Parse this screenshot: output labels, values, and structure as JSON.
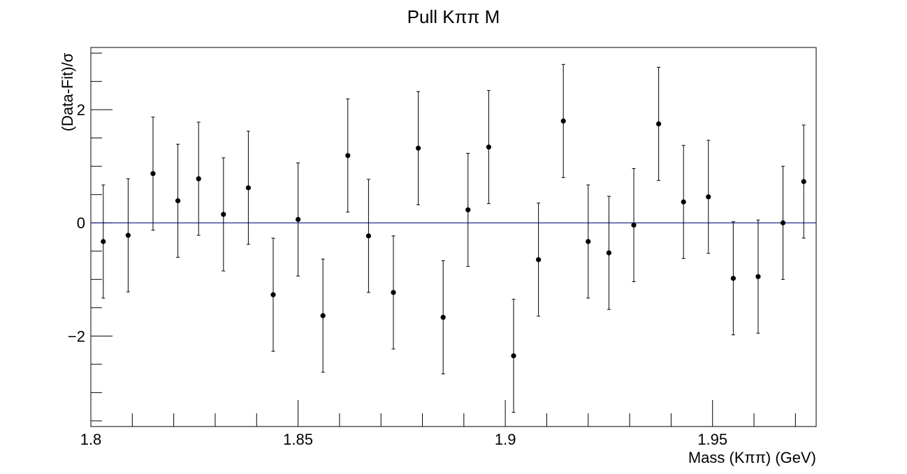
{
  "chart_data": {
    "type": "scatter",
    "title": "Pull Kππ M",
    "xlabel": "Mass (Kππ) (GeV)",
    "ylabel": "(Data-Fit)/σ",
    "xlim": [
      1.8,
      1.975
    ],
    "ylim": [
      -3.6,
      3.1
    ],
    "x_ticks": [
      1.8,
      1.85,
      1.9,
      1.95
    ],
    "x_tick_labels": [
      "1.8",
      "1.85",
      "1.9",
      "1.95"
    ],
    "y_ticks": [
      -2,
      0,
      2
    ],
    "y_tick_labels": [
      "−2",
      "0",
      "2"
    ],
    "reference_line": 0,
    "grid": false,
    "series": [
      {
        "error_bar": 1.0,
        "points": [
          {
            "x": 1.803,
            "y": -0.33
          },
          {
            "x": 1.809,
            "y": -0.22
          },
          {
            "x": 1.815,
            "y": 0.87
          },
          {
            "x": 1.821,
            "y": 0.39
          },
          {
            "x": 1.826,
            "y": 0.78
          },
          {
            "x": 1.832,
            "y": 0.15
          },
          {
            "x": 1.838,
            "y": 0.62
          },
          {
            "x": 1.844,
            "y": -1.27
          },
          {
            "x": 1.85,
            "y": 0.06
          },
          {
            "x": 1.856,
            "y": -1.64
          },
          {
            "x": 1.862,
            "y": 1.19
          },
          {
            "x": 1.867,
            "y": -0.23
          },
          {
            "x": 1.873,
            "y": -1.23
          },
          {
            "x": 1.879,
            "y": 1.32
          },
          {
            "x": 1.885,
            "y": -1.67
          },
          {
            "x": 1.891,
            "y": 0.23
          },
          {
            "x": 1.896,
            "y": 1.34
          },
          {
            "x": 1.902,
            "y": -2.35
          },
          {
            "x": 1.908,
            "y": -0.65
          },
          {
            "x": 1.914,
            "y": 1.8
          },
          {
            "x": 1.92,
            "y": -0.33
          },
          {
            "x": 1.925,
            "y": -0.53
          },
          {
            "x": 1.931,
            "y": -0.04
          },
          {
            "x": 1.937,
            "y": 1.75
          },
          {
            "x": 1.943,
            "y": 0.37
          },
          {
            "x": 1.949,
            "y": 0.46
          },
          {
            "x": 1.955,
            "y": -0.98
          },
          {
            "x": 1.961,
            "y": -0.95
          },
          {
            "x": 1.967,
            "y": 0.0
          },
          {
            "x": 1.972,
            "y": 0.73
          }
        ]
      }
    ]
  },
  "colors": {
    "points": "#000000",
    "reference_line": "#1f2a8c",
    "frame": "#000000"
  }
}
